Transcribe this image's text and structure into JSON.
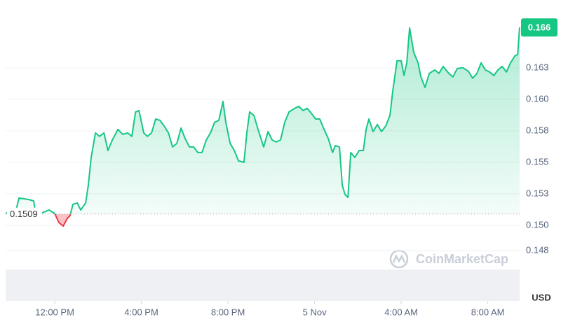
{
  "chart_data": {
    "type": "line",
    "x": [
      9.73,
      9.93,
      10.19,
      10.35,
      10.77,
      11.03,
      11.09,
      11.42,
      11.74,
      12.0,
      12.19,
      12.39,
      12.58,
      12.71,
      12.84,
      13.04,
      13.2,
      13.43,
      13.55,
      13.68,
      13.88,
      14.07,
      14.27,
      14.46,
      14.66,
      14.92,
      15.14,
      15.37,
      15.56,
      15.73,
      15.89,
      16.11,
      16.28,
      16.47,
      16.66,
      16.86,
      17.05,
      17.25,
      17.44,
      17.64,
      17.83,
      18.02,
      18.22,
      18.41,
      18.61,
      18.8,
      19.0,
      19.19,
      19.38,
      19.58,
      19.77,
      19.9,
      20.1,
      20.29,
      20.49,
      20.74,
      20.87,
      21.0,
      21.2,
      21.39,
      21.65,
      21.85,
      22.04,
      22.23,
      22.43,
      22.62,
      22.82,
      23.08,
      23.27,
      23.47,
      23.66,
      23.85,
      24.05,
      24.24,
      24.44,
      24.63,
      24.83,
      24.96,
      25.15,
      25.28,
      25.41,
      25.54,
      25.67,
      25.86,
      26.06,
      26.25,
      26.38,
      26.51,
      26.7,
      26.9,
      27.09,
      27.29,
      27.48,
      27.61,
      27.81,
      28.0,
      28.13,
      28.26,
      28.39,
      28.58,
      28.78,
      28.91,
      29.1,
      29.3,
      29.55,
      29.75,
      29.94,
      30.2,
      30.39,
      30.59,
      30.85,
      31.11,
      31.3,
      31.5,
      31.69,
      31.89,
      32.08,
      32.28,
      32.47,
      32.66,
      32.86,
      33.05,
      33.25,
      33.38,
      33.47
    ],
    "series": [
      {
        "color": "#16c784",
        "negative_color": "#ea3943",
        "values": [
          0.15094,
          0.15111,
          0.15106,
          0.15217,
          0.15206,
          0.15194,
          0.15122,
          0.151,
          0.15122,
          0.15094,
          0.15022,
          0.14994,
          0.15056,
          0.15078,
          0.15167,
          0.15178,
          0.15122,
          0.15178,
          0.15317,
          0.15539,
          0.15733,
          0.15706,
          0.15733,
          0.15594,
          0.15678,
          0.15761,
          0.15722,
          0.15733,
          0.15706,
          0.159,
          0.15911,
          0.15733,
          0.15706,
          0.15733,
          0.15844,
          0.15833,
          0.15789,
          0.15733,
          0.15622,
          0.1565,
          0.15772,
          0.15689,
          0.15622,
          0.15622,
          0.15578,
          0.15578,
          0.15678,
          0.15733,
          0.15817,
          0.15833,
          0.15983,
          0.15817,
          0.1565,
          0.15594,
          0.15511,
          0.155,
          0.15733,
          0.159,
          0.15872,
          0.15761,
          0.15622,
          0.15744,
          0.15678,
          0.15661,
          0.15678,
          0.15817,
          0.159,
          0.15928,
          0.15944,
          0.15911,
          0.15928,
          0.15889,
          0.15844,
          0.15844,
          0.15761,
          0.15689,
          0.15578,
          0.15633,
          0.15622,
          0.15317,
          0.15244,
          0.15222,
          0.15578,
          0.15539,
          0.15594,
          0.15594,
          0.15761,
          0.15844,
          0.15744,
          0.158,
          0.15744,
          0.15789,
          0.15872,
          0.16067,
          0.16306,
          0.16306,
          0.16189,
          0.16289,
          0.16567,
          0.16372,
          0.16289,
          0.16178,
          0.16094,
          0.16206,
          0.16233,
          0.16206,
          0.16261,
          0.16206,
          0.16178,
          0.16244,
          0.1625,
          0.16222,
          0.16167,
          0.16206,
          0.16289,
          0.16233,
          0.16217,
          0.16189,
          0.16233,
          0.16261,
          0.16217,
          0.16289,
          0.16344,
          0.16356,
          0.1657
        ]
      }
    ],
    "baseline": 0.1509,
    "current_price": {
      "value": 0.1657,
      "label": "0.166"
    },
    "xlim": [
      9.73,
      33.47
    ],
    "xticks": [
      {
        "value": 12,
        "label": "12:00 PM"
      },
      {
        "value": 16,
        "label": "4:00 PM"
      },
      {
        "value": 20,
        "label": "8:00 PM"
      },
      {
        "value": 24,
        "label": "5 Nov"
      },
      {
        "value": 28,
        "label": "4:00 AM"
      },
      {
        "value": 32,
        "label": "8:00 AM"
      }
    ],
    "ylim": [
      0.144,
      0.1676
    ],
    "yticks": [
      0.148,
      {
        "value": 0.15,
        "label": "0.150"
      },
      {
        "value": 0.1525,
        "label": "0.153"
      },
      0.155,
      {
        "value": 0.1575,
        "label": "0.158"
      },
      {
        "value": 0.16,
        "label": "0.160"
      },
      {
        "value": 0.1625,
        "label": "0.163"
      }
    ],
    "grid": true,
    "currency": "USD",
    "watermark": "CoinMarketCap"
  }
}
